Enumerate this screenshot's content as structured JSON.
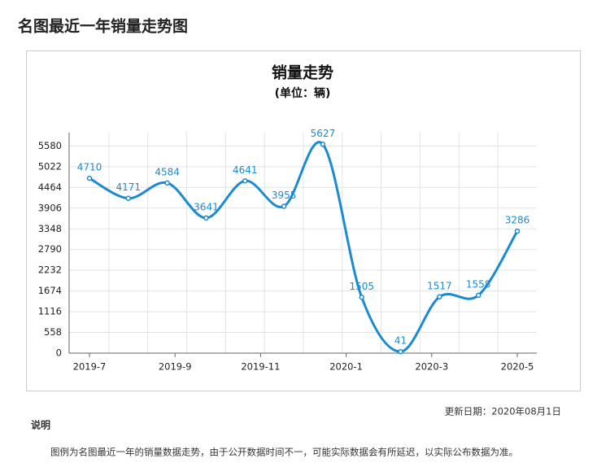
{
  "heading": "名图最近一年销量走势图",
  "chart_data": {
    "type": "line",
    "title": "销量走势",
    "subtitle": "(单位：辆)",
    "xticks": [
      "2019-7",
      "2019-9",
      "2019-11",
      "2020-1",
      "2020-3",
      "2020-5"
    ],
    "values": [
      4710,
      4171,
      4584,
      3641,
      4641,
      3955,
      5627,
      1505,
      41,
      1517,
      1558,
      3286
    ],
    "color": "#1a8bd1",
    "ylim": [
      0,
      5940
    ],
    "yticks": [
      0,
      558,
      1116,
      1674,
      2232,
      2790,
      3348,
      3906,
      4464,
      5022,
      5580
    ],
    "grid": true,
    "smooth": true
  },
  "update_date": "更新日期：2020年08月1日",
  "note_title": "说明",
  "note": "图例为名图最近一年的销量数据走势，由于公开数据时间不一，可能实际数据会有所延迟，以实际公布数据为准。"
}
